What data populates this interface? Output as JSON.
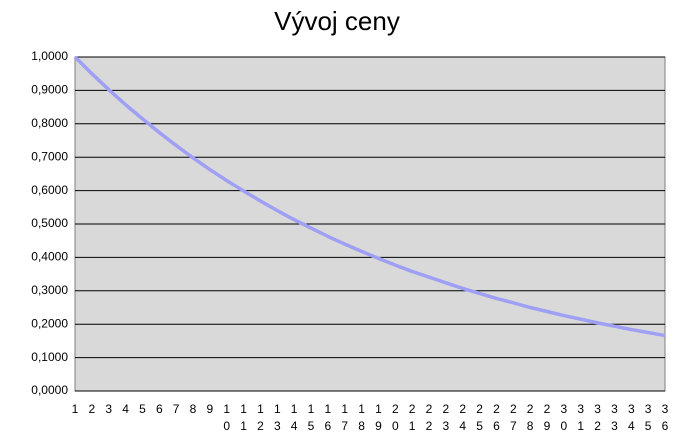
{
  "chart_data": {
    "type": "line",
    "title": "Vývoj ceny",
    "categories": [
      "1",
      "2",
      "3",
      "4",
      "5",
      "6",
      "7",
      "8",
      "9",
      "10",
      "11",
      "12",
      "13",
      "14",
      "15",
      "16",
      "17",
      "18",
      "19",
      "20",
      "21",
      "22",
      "23",
      "24",
      "25",
      "26",
      "27",
      "28",
      "29",
      "30",
      "31",
      "32",
      "33",
      "34",
      "35",
      "36"
    ],
    "values": [
      1,
      0.95,
      0.9025,
      0.857,
      0.815,
      0.774,
      0.735,
      0.698,
      0.663,
      0.63,
      0.599,
      0.569,
      0.54,
      0.513,
      0.488,
      0.463,
      0.44,
      0.418,
      0.397,
      0.377,
      0.358,
      0.341,
      0.324,
      0.307,
      0.292,
      0.277,
      0.264,
      0.25,
      0.238,
      0.226,
      0.215,
      0.204,
      0.194,
      0.184,
      0.175,
      0.166
    ],
    "color": "#9f9ff5",
    "ylim": [
      0,
      1
    ],
    "yticks": [
      {
        "value": 0,
        "label": "0,0000"
      },
      {
        "value": 0.1,
        "label": "0,1000"
      },
      {
        "value": 0.2,
        "label": "0,2000"
      },
      {
        "value": 0.3,
        "label": "0,3000"
      },
      {
        "value": 0.4,
        "label": "0,4000"
      },
      {
        "value": 0.5,
        "label": "0,5000"
      },
      {
        "value": 0.6,
        "label": "0,6000"
      },
      {
        "value": 0.7,
        "label": "0,7000"
      },
      {
        "value": 0.8,
        "label": "0,8000"
      },
      {
        "value": 0.9,
        "label": "0,9000"
      },
      {
        "value": 1,
        "label": "1,0000"
      }
    ],
    "grid": true
  }
}
